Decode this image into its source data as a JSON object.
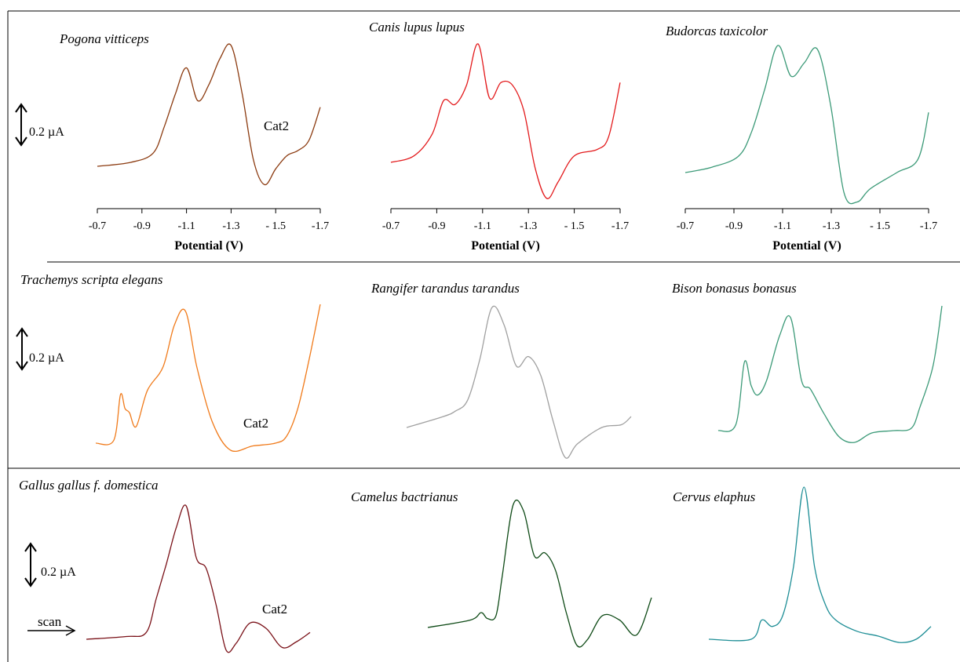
{
  "figure": {
    "scale_bar_label": "0.2 µA",
    "scan_label": "scan",
    "peak_label": "Cat2",
    "axis_title": "Potential (V)"
  },
  "chart_data": [
    {
      "type": "line",
      "title": "Pogona vitticeps",
      "color": "#8B3A0F",
      "xlabel": "Potential (V)",
      "xlim": [
        -0.7,
        -1.7
      ],
      "xticks": [
        "-0.7",
        "-0.9",
        "-1.1",
        "-1.3",
        "- 1.5",
        "-1.7"
      ],
      "annotation": "Cat2",
      "x": [
        -0.7,
        -0.85,
        -0.95,
        -1.0,
        -1.05,
        -1.1,
        -1.15,
        -1.2,
        -1.25,
        -1.3,
        -1.35,
        -1.4,
        -1.45,
        -1.5,
        -1.55,
        -1.6,
        -1.65,
        -1.7
      ],
      "y": [
        0.0,
        0.03,
        0.1,
        0.3,
        0.55,
        0.75,
        0.5,
        0.62,
        0.82,
        0.92,
        0.55,
        0.05,
        -0.14,
        -0.02,
        0.08,
        0.12,
        0.2,
        0.45
      ]
    },
    {
      "type": "line",
      "title": "Canis lupus lupus",
      "color": "#E31A1C",
      "xlabel": "Potential (V)",
      "xlim": [
        -0.7,
        -1.7
      ],
      "xticks": [
        "-0.7",
        "-0.9",
        "-1.1",
        "-1.3",
        "- 1.5",
        "-1.7"
      ],
      "x": [
        -0.7,
        -0.8,
        -0.88,
        -0.93,
        -0.98,
        -1.03,
        -1.08,
        -1.13,
        -1.18,
        -1.23,
        -1.28,
        -1.33,
        -1.38,
        -1.43,
        -1.5,
        -1.6,
        -1.65,
        -1.7
      ],
      "y": [
        0.0,
        0.05,
        0.22,
        0.48,
        0.45,
        0.6,
        0.92,
        0.5,
        0.62,
        0.6,
        0.4,
        -0.05,
        -0.28,
        -0.15,
        0.05,
        0.1,
        0.2,
        0.62
      ]
    },
    {
      "type": "line",
      "title": "Budorcas taxicolor",
      "color": "#3C9A78",
      "xlabel": "Potential (V)",
      "xlim": [
        -0.7,
        -1.7
      ],
      "xticks": [
        "-0.7",
        "-0.9",
        "-1.1",
        "-1.3",
        "- 1.5",
        "-1.7"
      ],
      "x": [
        -0.7,
        -0.8,
        -0.9,
        -0.95,
        -1.0,
        -1.05,
        -1.1,
        -1.15,
        -1.2,
        -1.25,
        -1.3,
        -1.35,
        -1.4,
        -1.5,
        -1.58,
        -1.62
      ],
      "y": [
        0.0,
        0.04,
        0.12,
        0.3,
        0.62,
        0.95,
        0.72,
        0.82,
        0.92,
        0.5,
        -0.15,
        -0.22,
        -0.12,
        0.0,
        0.1,
        0.45
      ]
    },
    {
      "type": "line",
      "title": "Trachemys scripta elegans",
      "color": "#F07A1A",
      "annotation": "Cat2",
      "x": [
        -0.7,
        -0.78,
        -0.81,
        -0.83,
        -0.85,
        -0.88,
        -0.93,
        -1.0,
        -1.05,
        -1.1,
        -1.15,
        -1.22,
        -1.3,
        -1.4,
        -1.5,
        -1.55,
        -1.6,
        -1.65,
        -1.7
      ],
      "y": [
        0.0,
        0.02,
        0.35,
        0.25,
        0.22,
        0.12,
        0.38,
        0.55,
        0.85,
        0.95,
        0.55,
        0.15,
        -0.05,
        -0.02,
        0.0,
        0.05,
        0.25,
        0.6,
        1.0
      ]
    },
    {
      "type": "line",
      "title": "Rangifer tarandus tarandus",
      "color": "#A0A0A0",
      "x": [
        -0.7,
        -0.85,
        -0.9,
        -0.95,
        -1.0,
        -1.05,
        -1.1,
        -1.15,
        -1.2,
        -1.25,
        -1.3,
        -1.35,
        -1.4,
        -1.5,
        -1.58,
        -1.62
      ],
      "y": [
        0.0,
        0.08,
        0.12,
        0.2,
        0.5,
        0.88,
        0.75,
        0.45,
        0.52,
        0.38,
        0.05,
        -0.22,
        -0.12,
        0.0,
        0.02,
        0.08
      ]
    },
    {
      "type": "line",
      "title": "Bison bonasus bonasus",
      "color": "#3C9A78",
      "x": [
        -0.7,
        -0.78,
        -0.82,
        -0.85,
        -0.88,
        -0.92,
        -0.98,
        -1.03,
        -1.08,
        -1.12,
        -1.18,
        -1.25,
        -1.32,
        -1.4,
        -1.5,
        -1.58,
        -1.62,
        -1.68,
        -1.72
      ],
      "y": [
        0.0,
        0.05,
        0.58,
        0.38,
        0.3,
        0.42,
        0.8,
        0.95,
        0.42,
        0.35,
        0.15,
        -0.05,
        -0.1,
        -0.02,
        0.0,
        0.02,
        0.2,
        0.55,
        1.05
      ]
    },
    {
      "type": "line",
      "title": "Gallus gallus f. domestica",
      "color": "#7A1118",
      "annotation": "Cat2",
      "x": [
        -0.6,
        -0.8,
        -0.9,
        -0.95,
        -1.0,
        -1.05,
        -1.1,
        -1.15,
        -1.2,
        -1.25,
        -1.3,
        -1.35,
        -1.42,
        -1.5,
        -1.58,
        -1.65,
        -1.72
      ],
      "y": [
        0.0,
        0.02,
        0.05,
        0.3,
        0.55,
        0.82,
        0.98,
        0.6,
        0.52,
        0.25,
        -0.08,
        -0.03,
        0.12,
        0.08,
        -0.06,
        -0.02,
        0.05
      ]
    },
    {
      "type": "line",
      "title": "Camelus bactrianus",
      "color": "#0E4A16",
      "x": [
        -0.6,
        -0.8,
        -0.85,
        -0.88,
        -0.92,
        -0.95,
        -1.0,
        -1.05,
        -1.1,
        -1.15,
        -1.2,
        -1.25,
        -1.3,
        -1.35,
        -1.42,
        -1.5,
        -1.58,
        -1.65
      ],
      "y": [
        0.0,
        0.05,
        0.1,
        0.06,
        0.08,
        0.35,
        0.82,
        0.78,
        0.48,
        0.5,
        0.38,
        0.1,
        -0.12,
        -0.08,
        0.08,
        0.05,
        -0.05,
        0.2
      ]
    },
    {
      "type": "line",
      "title": "Cervus elaphus",
      "color": "#1E8E96",
      "x": [
        -0.6,
        -0.8,
        -0.85,
        -0.9,
        -0.95,
        -1.0,
        -1.05,
        -1.1,
        -1.15,
        -1.2,
        -1.3,
        -1.4,
        -1.5,
        -1.58,
        -1.65
      ],
      "y": [
        0.0,
        0.0,
        0.12,
        0.08,
        0.15,
        0.45,
        0.95,
        0.45,
        0.22,
        0.12,
        0.05,
        0.02,
        -0.02,
        0.0,
        0.08
      ]
    }
  ]
}
